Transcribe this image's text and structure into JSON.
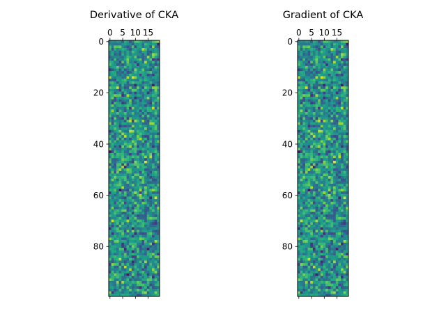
{
  "chart_data": [
    {
      "type": "heatmap",
      "title": "Derivative of CKA",
      "rows": 100,
      "cols": 20,
      "colormap": "viridis",
      "x_ticks": [
        0,
        5,
        10,
        15
      ],
      "x_tick_labels": [
        "0",
        "5",
        "10",
        "15"
      ],
      "x_axis_position": "top",
      "y_ticks": [
        0,
        20,
        40,
        60,
        80
      ],
      "y_tick_labels": [
        "0",
        "20",
        "40",
        "60",
        "80"
      ],
      "value_range": [
        -1,
        1
      ],
      "seed": 1337
    },
    {
      "type": "heatmap",
      "title": "Gradient of CKA",
      "rows": 100,
      "cols": 20,
      "colormap": "viridis",
      "x_ticks": [
        0,
        5,
        10,
        15
      ],
      "x_tick_labels": [
        "0",
        "5",
        "10",
        "15"
      ],
      "x_axis_position": "top",
      "y_ticks": [
        0,
        20,
        40,
        60,
        80
      ],
      "y_tick_labels": [
        "0",
        "20",
        "40",
        "60",
        "80"
      ],
      "value_range": [
        -1,
        1
      ],
      "seed": 1337
    }
  ]
}
